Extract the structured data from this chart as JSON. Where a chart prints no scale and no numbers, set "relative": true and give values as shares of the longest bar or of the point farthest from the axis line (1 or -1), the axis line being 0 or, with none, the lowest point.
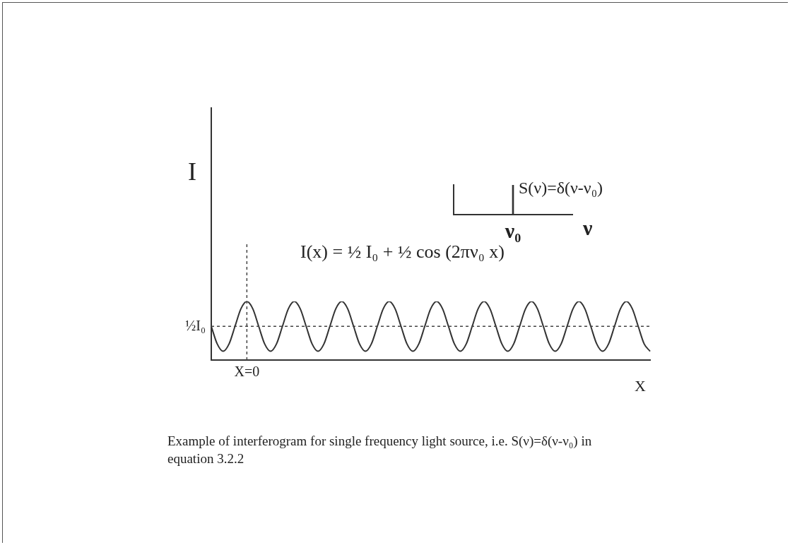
{
  "chart_data": [
    {
      "type": "line",
      "relative": true,
      "ylabel": "I",
      "xlabel": "X",
      "tick_labels": "x",
      "grid": false,
      "legend": false,
      "marker": "none",
      "line_style": "solid",
      "categories": [
        null,
        null,
        null,
        null,
        null,
        null,
        null,
        null,
        null,
        null,
        null,
        null,
        null,
        null,
        null,
        null,
        null,
        null,
        null,
        null,
        null,
        null,
        null,
        null,
        null,
        null,
        null,
        null,
        null,
        null,
        null,
        null,
        null,
        null,
        null,
        null,
        null,
        null,
        null,
        null,
        null,
        null,
        null,
        null,
        null,
        null,
        null,
        null,
        null,
        null,
        null,
        null,
        null,
        null,
        null,
        null,
        null,
        null,
        null,
        null,
        null,
        null,
        null,
        null,
        null,
        null,
        null,
        null,
        null,
        null,
        null,
        null,
        null,
        null,
        null
      ],
      "series": [
        {
          "color": "#333333",
          "values": [
            0.575,
            0.275,
            0.15,
            0.275,
            0.575,
            0.875,
            1,
            0.875,
            0.575,
            0.275,
            0.15,
            0.275,
            0.575,
            0.875,
            1,
            0.875,
            0.575,
            0.275,
            0.15,
            0.275,
            0.575,
            0.875,
            1,
            0.875,
            0.575,
            0.275,
            0.15,
            0.275,
            0.575,
            0.875,
            1,
            0.875,
            0.575,
            0.275,
            0.15,
            0.275,
            0.575,
            0.875,
            1,
            0.875,
            0.575,
            0.275,
            0.15,
            0.275,
            0.575,
            0.875,
            1,
            0.875,
            0.575,
            0.275,
            0.15,
            0.275,
            0.575,
            0.875,
            1,
            0.875,
            0.575,
            0.275,
            0.15,
            0.275,
            0.575,
            0.875,
            1,
            0.875,
            0.575,
            0.275,
            0.15,
            0.275,
            0.575,
            0.875,
            1,
            0.875,
            0.575,
            0.275,
            0.15
          ]
        }
      ],
      "ref_lines": [
        {
          "axis": "y",
          "value": 0.575,
          "label": "½I₀",
          "line_style": "dashed",
          "color": "#444444"
        }
      ],
      "annotations": [
        "I(x) = ½ I₀ + ½ cos (2πν₀ x)",
        "Example of interferogram for single frequency light source, i.e. S(ν)=δ(ν-ν₀) in equation 3.2.2",
        "X=0"
      ]
    },
    {
      "type": "bar",
      "relative": true,
      "xlabel": "ν",
      "tick_labels": "x",
      "grid": false,
      "legend": false,
      "categories": [
        "ν₀"
      ],
      "series": [
        {
          "color": "#333333",
          "values": [
            1
          ]
        }
      ],
      "annotations": [
        {
          "text": "S(ν)=δ(ν-ν₀)",
          "x": "ν₀",
          "y": 1
        }
      ]
    }
  ]
}
